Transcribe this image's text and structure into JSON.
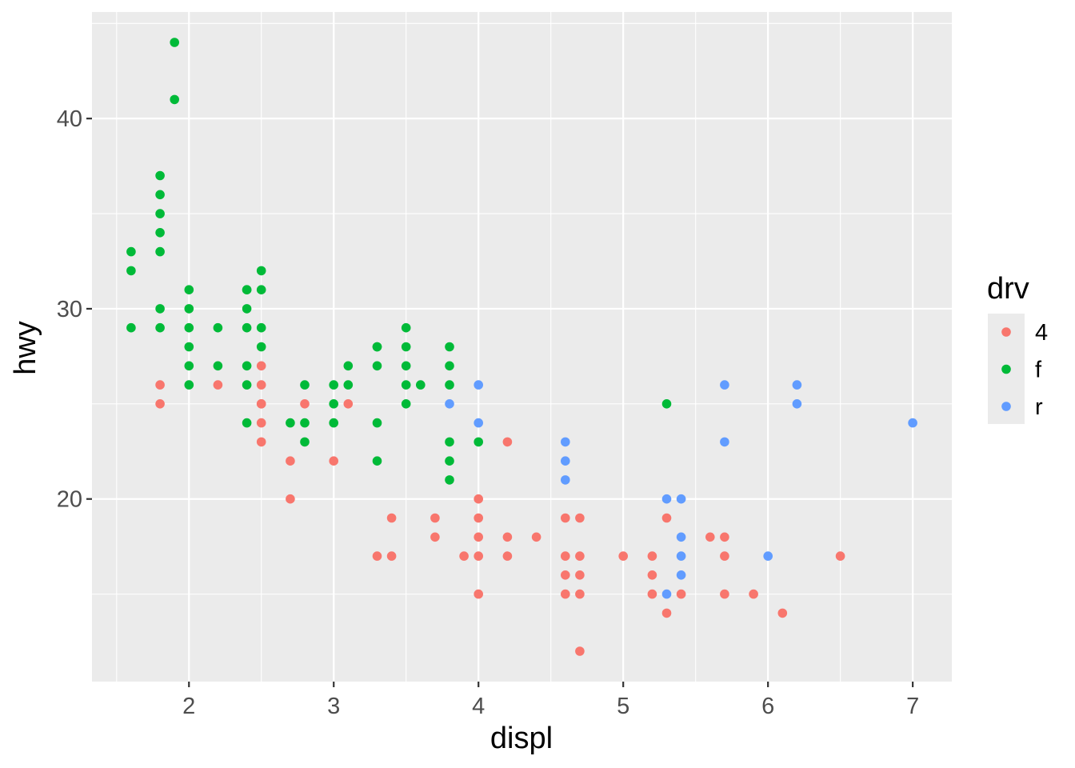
{
  "chart_data": {
    "type": "scatter",
    "title": "",
    "xlabel": "displ",
    "ylabel": "hwy",
    "xlim": [
      1.33,
      7.27
    ],
    "ylim": [
      10.4,
      45.6
    ],
    "x_ticks": [
      2,
      3,
      4,
      5,
      6,
      7
    ],
    "x_tick_labels": [
      "2",
      "3",
      "4",
      "5",
      "6",
      "7"
    ],
    "y_ticks": [
      20,
      30,
      40
    ],
    "y_tick_labels": [
      "20",
      "30",
      "40"
    ],
    "grid": true,
    "legend_position": "right",
    "legend": {
      "title": "drv",
      "entries": [
        "4",
        "f",
        "r"
      ]
    },
    "colors": {
      "4": "#F8766D",
      "f": "#00BA38",
      "r": "#619CFF",
      "panel_background": "#EBEBEB",
      "grid": "#FFFFFF"
    },
    "series": [
      {
        "name": "4",
        "x": [
          1.8,
          1.8,
          2.2,
          2.5,
          2.5,
          2.5,
          2.5,
          2.5,
          2.5,
          2.7,
          2.7,
          2.8,
          3.0,
          3.1,
          3.3,
          3.4,
          3.4,
          3.7,
          3.7,
          3.9,
          4.0,
          4.0,
          4.0,
          4.0,
          4.0,
          4.2,
          4.2,
          4.2,
          4.4,
          4.6,
          4.6,
          4.6,
          4.6,
          4.7,
          4.7,
          4.7,
          4.7,
          4.7,
          5.0,
          5.2,
          5.2,
          5.2,
          5.3,
          5.3,
          5.4,
          5.6,
          5.7,
          5.7,
          5.7,
          5.9,
          6.1,
          6.5
        ],
        "y": [
          26,
          25,
          26,
          27,
          26,
          25,
          24,
          23,
          25,
          22,
          20,
          25,
          22,
          25,
          17,
          19,
          17,
          19,
          18,
          17,
          20,
          19,
          18,
          17,
          15,
          23,
          18,
          17,
          18,
          19,
          17,
          16,
          15,
          19,
          17,
          16,
          15,
          12,
          17,
          17,
          16,
          15,
          19,
          14,
          15,
          18,
          18,
          17,
          15,
          15,
          14,
          17
        ]
      },
      {
        "name": "f",
        "x": [
          1.6,
          1.6,
          1.6,
          1.8,
          1.8,
          1.8,
          1.8,
          1.8,
          1.8,
          1.8,
          1.9,
          1.9,
          2.0,
          2.0,
          2.0,
          2.0,
          2.0,
          2.0,
          2.2,
          2.2,
          2.4,
          2.4,
          2.4,
          2.4,
          2.4,
          2.4,
          2.4,
          2.5,
          2.5,
          2.5,
          2.5,
          2.7,
          2.8,
          2.8,
          2.8,
          3.0,
          3.0,
          3.0,
          3.1,
          3.1,
          3.3,
          3.3,
          3.3,
          3.3,
          3.3,
          3.5,
          3.5,
          3.5,
          3.5,
          3.5,
          3.6,
          3.8,
          3.8,
          3.8,
          3.8,
          3.8,
          3.8,
          4.0,
          5.3
        ],
        "y": [
          33,
          32,
          29,
          37,
          36,
          35,
          34,
          33,
          30,
          29,
          44,
          41,
          31,
          30,
          29,
          28,
          27,
          26,
          29,
          27,
          31,
          30,
          29,
          27,
          26,
          24,
          31,
          32,
          31,
          29,
          28,
          24,
          26,
          24,
          23,
          26,
          25,
          24,
          27,
          26,
          28,
          27,
          24,
          22,
          28,
          29,
          28,
          27,
          26,
          25,
          26,
          28,
          27,
          26,
          23,
          22,
          21,
          23,
          25
        ]
      },
      {
        "name": "r",
        "x": [
          3.8,
          4.0,
          4.0,
          4.6,
          4.6,
          4.6,
          5.3,
          5.3,
          5.4,
          5.4,
          5.4,
          5.4,
          5.7,
          5.7,
          6.0,
          6.2,
          6.2,
          7.0
        ],
        "y": [
          25,
          26,
          24,
          23,
          22,
          21,
          20,
          15,
          20,
          18,
          17,
          16,
          26,
          23,
          17,
          26,
          25,
          24
        ]
      }
    ]
  }
}
